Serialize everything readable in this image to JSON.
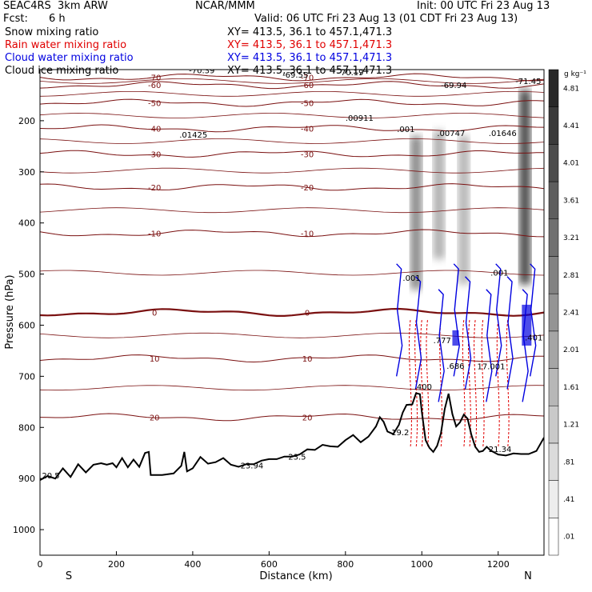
{
  "header": {
    "model": "SEAC4RS  3km ARW",
    "org": "NCAR/MMM",
    "init": "Init: 00 UTC Fri 23 Aug 13",
    "fcst_label": "Fcst:",
    "fcst_value": "6 h",
    "valid": "Valid: 06 UTC Fri 23 Aug 13 (01 CDT Fri 23 Aug 13)",
    "fields": [
      {
        "name": "Snow mixing ratio",
        "xy": "XY= 413.5, 36.1 to 457.1,471.3",
        "color": "#000000"
      },
      {
        "name": "Rain water mixing ratio",
        "xy": "XY= 413.5, 36.1 to 457.1,471.3",
        "color": "#e00000"
      },
      {
        "name": "Cloud water mixing ratio",
        "xy": "XY= 413.5, 36.1 to 457.1,471.3",
        "color": "#0000e0"
      },
      {
        "name": "Cloud ice mixing ratio",
        "xy": "XY= 413.5, 36.1 to 457.1,471.3",
        "color": "#000000"
      }
    ]
  },
  "chart_data": {
    "type": "cross-section",
    "xlabel": "Distance (km)",
    "ylabel": "Pressure (hPa)",
    "xlim": [
      0,
      1320
    ],
    "ylim": [
      1050,
      100
    ],
    "x_ticks": [
      0,
      200,
      400,
      600,
      800,
      1000,
      1200
    ],
    "y_ticks": [
      200,
      300,
      400,
      500,
      600,
      700,
      800,
      900,
      1000
    ],
    "end_labels": [
      "S",
      "N"
    ],
    "colorbar": {
      "unit": "g kg⁻¹",
      "levels": [
        ".01",
        ".41",
        ".81",
        "1.21",
        "1.61",
        "2.01",
        "2.41",
        "2.81",
        "3.21",
        "3.61",
        "4.01",
        "4.41",
        "4.81"
      ]
    },
    "temperature_contours": [
      {
        "label": "-70",
        "p": 115
      },
      {
        "label": "-60",
        "p": 130
      },
      {
        "label": "-50",
        "p": 165
      },
      {
        "label": "-40",
        "p": 215
      },
      {
        "label": "-30",
        "p": 265
      },
      {
        "label": "-20",
        "p": 330
      },
      {
        "label": "-10",
        "p": 420
      },
      {
        "label": "0",
        "p": 575
      },
      {
        "label": "10",
        "p": 665
      },
      {
        "label": "20",
        "p": 780
      }
    ],
    "contour_labels": [
      {
        "text": "-70.39",
        "x": 390,
        "p": 107
      },
      {
        "text": "-69.55",
        "x": 635,
        "p": 116
      },
      {
        "text": "-70.19",
        "x": 780,
        "p": 111
      },
      {
        "text": "-69.94",
        "x": 1050,
        "p": 136
      },
      {
        "text": "-71.45",
        "x": 1245,
        "p": 128
      },
      {
        "text": ".00911",
        "x": 800,
        "p": 200
      },
      {
        "text": ".001",
        "x": 935,
        "p": 222
      },
      {
        "text": ".00747",
        "x": 1040,
        "p": 230
      },
      {
        "text": ".01646",
        "x": 1175,
        "p": 230
      },
      {
        "text": ".01425",
        "x": 365,
        "p": 233
      },
      {
        "text": "19.2",
        "x": 920,
        "p": 815
      },
      {
        "text": "23.94",
        "x": 525,
        "p": 880
      },
      {
        "text": "23.5",
        "x": 650,
        "p": 863
      },
      {
        "text": "20.5",
        "x": 5,
        "p": 900
      },
      {
        "text": "21.34",
        "x": 1175,
        "p": 848
      },
      {
        "text": ".001",
        "x": 950,
        "p": 513
      },
      {
        "text": ".001",
        "x": 1180,
        "p": 503
      },
      {
        "text": ".777",
        "x": 1030,
        "p": 635
      },
      {
        "text": ".686",
        "x": 1065,
        "p": 685
      },
      {
        "text": ".401",
        "x": 1270,
        "p": 630
      },
      {
        "text": ".400",
        "x": 980,
        "p": 726
      },
      {
        "text": "17.001",
        "x": 1145,
        "p": 686
      }
    ],
    "terrain": [
      [
        0,
        903
      ],
      [
        20,
        895
      ],
      [
        40,
        900
      ],
      [
        60,
        880
      ],
      [
        80,
        897
      ],
      [
        100,
        872
      ],
      [
        120,
        888
      ],
      [
        140,
        873
      ],
      [
        160,
        870
      ],
      [
        175,
        873
      ],
      [
        190,
        870
      ],
      [
        200,
        878
      ],
      [
        215,
        860
      ],
      [
        230,
        878
      ],
      [
        245,
        863
      ],
      [
        260,
        877
      ],
      [
        275,
        850
      ],
      [
        285,
        848
      ],
      [
        290,
        893
      ],
      [
        320,
        893
      ],
      [
        350,
        890
      ],
      [
        370,
        875
      ],
      [
        378,
        848
      ],
      [
        385,
        886
      ],
      [
        400,
        880
      ],
      [
        420,
        858
      ],
      [
        440,
        871
      ],
      [
        460,
        868
      ],
      [
        480,
        860
      ],
      [
        500,
        873
      ],
      [
        520,
        877
      ],
      [
        540,
        872
      ],
      [
        560,
        872
      ],
      [
        580,
        865
      ],
      [
        600,
        862
      ],
      [
        620,
        862
      ],
      [
        640,
        857
      ],
      [
        660,
        857
      ],
      [
        680,
        853
      ],
      [
        700,
        843
      ],
      [
        720,
        844
      ],
      [
        740,
        834
      ],
      [
        760,
        837
      ],
      [
        780,
        838
      ],
      [
        800,
        825
      ],
      [
        820,
        815
      ],
      [
        840,
        829
      ],
      [
        860,
        818
      ],
      [
        880,
        798
      ],
      [
        890,
        780
      ],
      [
        900,
        789
      ],
      [
        910,
        808
      ],
      [
        925,
        813
      ],
      [
        940,
        795
      ],
      [
        950,
        771
      ],
      [
        960,
        756
      ],
      [
        975,
        755
      ],
      [
        985,
        733
      ],
      [
        995,
        735
      ],
      [
        1000,
        770
      ],
      [
        1010,
        825
      ],
      [
        1020,
        840
      ],
      [
        1030,
        848
      ],
      [
        1040,
        836
      ],
      [
        1050,
        812
      ],
      [
        1060,
        764
      ],
      [
        1070,
        734
      ],
      [
        1080,
        774
      ],
      [
        1090,
        798
      ],
      [
        1100,
        790
      ],
      [
        1110,
        775
      ],
      [
        1120,
        783
      ],
      [
        1130,
        815
      ],
      [
        1140,
        838
      ],
      [
        1150,
        848
      ],
      [
        1160,
        846
      ],
      [
        1170,
        838
      ],
      [
        1180,
        845
      ],
      [
        1200,
        853
      ],
      [
        1220,
        855
      ],
      [
        1240,
        851
      ],
      [
        1260,
        852
      ],
      [
        1280,
        852
      ],
      [
        1300,
        846
      ],
      [
        1320,
        820
      ]
    ],
    "rain_columns": [
      970,
      985,
      1000,
      1015,
      1050,
      1110,
      1125,
      1140,
      1160,
      1200,
      1225
    ],
    "cloud_columns": [
      940,
      990,
      1050,
      1090,
      1120,
      1175,
      1200,
      1230,
      1270,
      1290
    ],
    "snow_shading": [
      {
        "x": 985,
        "p1": 230,
        "p2": 530,
        "level": 2.8
      },
      {
        "x": 1045,
        "p1": 220,
        "p2": 470,
        "level": 1.6
      },
      {
        "x": 1110,
        "p1": 230,
        "p2": 520,
        "level": 1.4
      },
      {
        "x": 1270,
        "p1": 140,
        "p2": 520,
        "level": 4.8
      }
    ]
  }
}
